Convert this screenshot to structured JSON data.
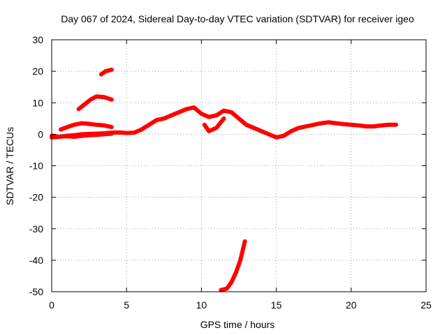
{
  "chart_data": {
    "type": "line",
    "title": "Day 067 of 2024, Sidereal Day-to-day VTEC variation (SDTVAR) for receiver igeo",
    "xlabel": "GPS time / hours",
    "ylabel": "SDTVAR / TECUs",
    "xlim": [
      0,
      25
    ],
    "ylim": [
      -50,
      30
    ],
    "xticks": [
      0,
      5,
      10,
      15,
      20,
      25
    ],
    "yticks": [
      -50,
      -40,
      -30,
      -20,
      -10,
      0,
      10,
      20,
      30
    ],
    "xtick_labels": [
      "0",
      "5",
      "10",
      "15",
      "20",
      "25"
    ],
    "ytick_labels": [
      "-50",
      "-40",
      "-30",
      "-20",
      "-10",
      "0",
      "10",
      "20",
      "30"
    ],
    "grid": true,
    "legend": "none",
    "color": "#ff0000",
    "series": [
      {
        "name": "main",
        "x": [
          0,
          0.5,
          1,
          1.5,
          2,
          2.5,
          3,
          3.5,
          4,
          4.5,
          5,
          5.5,
          6,
          6.5,
          7,
          7.5,
          8,
          8.5,
          9,
          9.5,
          10,
          10.5,
          11,
          11.5,
          12,
          12.5,
          13,
          13.5,
          14,
          14.5,
          15,
          15.5,
          16,
          16.5,
          17,
          17.5,
          18,
          18.5,
          19,
          19.5,
          20,
          20.5,
          21,
          21.5,
          22,
          22.5,
          23
        ],
        "y": [
          -0.5,
          -0.8,
          -0.5,
          -0.3,
          0,
          0.1,
          0.2,
          0.3,
          0.5,
          0.6,
          0.4,
          0.5,
          1.5,
          3,
          4.5,
          5,
          6,
          7,
          8,
          8.5,
          6.5,
          5.5,
          6,
          7.5,
          7,
          5,
          3,
          2,
          1,
          0,
          -1,
          -0.5,
          1,
          2,
          2.5,
          3,
          3.5,
          3.8,
          3.5,
          3.2,
          3,
          2.8,
          2.5,
          2.5,
          2.8,
          3,
          3
        ]
      },
      {
        "name": "early-lower",
        "x": [
          0,
          0.5,
          1,
          1.5,
          2,
          2.5,
          3,
          3.5,
          4
        ],
        "y": [
          -1,
          -0.8,
          -0.6,
          -0.8,
          -0.5,
          -0.3,
          -0.2,
          0,
          0.2
        ]
      },
      {
        "name": "early-upper",
        "x": [
          0.6,
          1,
          1.5,
          2,
          2.5,
          3,
          3.5,
          4
        ],
        "y": [
          1.5,
          2.2,
          3,
          3.5,
          3.3,
          3,
          2.8,
          2.3
        ]
      },
      {
        "name": "segment-mid",
        "x": [
          1.8,
          2.2,
          2.6,
          3,
          3.5,
          4
        ],
        "y": [
          8,
          9.5,
          11,
          12,
          11.8,
          11
        ]
      },
      {
        "name": "segment-high",
        "x": [
          3.3,
          3.6,
          4
        ],
        "y": [
          19,
          20,
          20.5
        ]
      },
      {
        "name": "dip",
        "x": [
          10.2,
          10.5,
          11,
          11.5
        ],
        "y": [
          3,
          1,
          2,
          5
        ]
      },
      {
        "name": "descent",
        "x": [
          11.3,
          11.7,
          12,
          12.3,
          12.6,
          12.9
        ],
        "y": [
          -49.5,
          -49,
          -47,
          -44,
          -40,
          -34
        ]
      }
    ]
  }
}
